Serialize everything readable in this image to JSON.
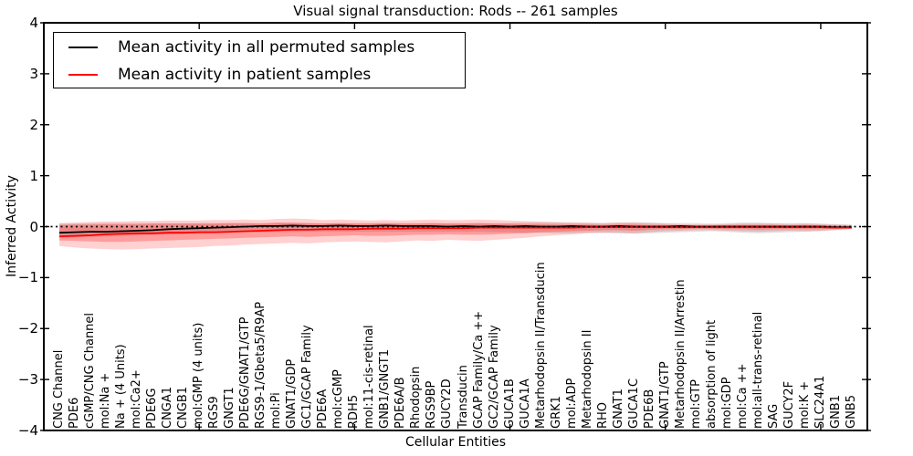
{
  "chart_data": {
    "type": "line",
    "title": "Visual signal transduction: Rods -- 261 samples",
    "xlabel": "Cellular Entities",
    "ylabel": "Inferred Activity",
    "ylim": [
      -4,
      4
    ],
    "yticks": [
      4,
      3,
      2,
      1,
      0,
      -1,
      -2,
      -3,
      -4
    ],
    "ytick_labels": [
      "4",
      "3",
      "2",
      "1",
      "0",
      "−1",
      "−2",
      "−3",
      "−4"
    ],
    "x_major_ticks": [
      10,
      20,
      30,
      40,
      50
    ],
    "grid": false,
    "legend_position": "upper left",
    "categories": [
      "CNG Channel",
      "PDE6",
      "cGMP/CNG Channel",
      "mol:Na +",
      "Na + (4 Units)",
      "mol:Ca2+",
      "PDE6G",
      "CNGA1",
      "CNGB1",
      "mol:GMP (4 units)",
      "RGS9",
      "GNGT1",
      "PDE6G/GNAT1/GTP",
      "RGS9-1/Gbeta5/R9AP",
      "mol:Pi",
      "GNAT1/GDP",
      "GC1/GCAP Family",
      "PDE6A",
      "mol:cGMP",
      "RDH5",
      "mol:11-cis-retinal",
      "GNB1/GNGT1",
      "PDE6A/B",
      "Rhodopsin",
      "RGS9BP",
      "GUCY2D",
      "Transducin",
      "GCAP Family/Ca ++",
      "GC2/GCAP Family",
      "GUCA1B",
      "GUCA1A",
      "Metarhodopsin II/Transducin",
      "GRK1",
      "mol:ADP",
      "Metarhodopsin II",
      "RHO",
      "GNAT1",
      "GUCA1C",
      "PDE6B",
      "GNAT1/GTP",
      "Metarhodopsin II/Arrestin",
      "mol:GTP",
      "absorption of light",
      "mol:GDP",
      "mol:Ca ++",
      "mol:all-trans-retinal",
      "SAG",
      "GUCY2F",
      "mol:K +",
      "SLC24A1",
      "GNB1",
      "GNB5"
    ],
    "series": [
      {
        "name": "Mean activity in all permuted samples",
        "color": "#000000",
        "values": [
          -0.12,
          -0.11,
          -0.1,
          -0.1,
          -0.09,
          -0.08,
          -0.07,
          -0.05,
          -0.04,
          -0.03,
          -0.02,
          -0.01,
          0.0,
          0.01,
          0.01,
          0.02,
          0.01,
          0.01,
          0.02,
          0.01,
          0.01,
          0.02,
          0.01,
          0.01,
          0.01,
          0.0,
          0.01,
          0.0,
          0.01,
          0.0,
          0.01,
          0.0,
          0.0,
          0.01,
          0.0,
          0.0,
          0.01,
          0.0,
          0.0,
          0.0,
          0.01,
          0.0,
          0.0,
          0.0,
          0.0,
          0.0,
          0.0,
          0.0,
          0.0,
          0.0,
          -0.01,
          -0.01
        ]
      },
      {
        "name": "Mean activity in patient samples",
        "color": "#ff0000",
        "values": [
          -0.19,
          -0.18,
          -0.17,
          -0.15,
          -0.14,
          -0.13,
          -0.13,
          -0.12,
          -0.12,
          -0.11,
          -0.11,
          -0.1,
          -0.09,
          -0.08,
          -0.07,
          -0.06,
          -0.06,
          -0.05,
          -0.05,
          -0.05,
          -0.04,
          -0.04,
          -0.04,
          -0.03,
          -0.03,
          -0.03,
          -0.03,
          -0.02,
          -0.02,
          -0.02,
          -0.02,
          -0.02,
          -0.02,
          -0.02,
          -0.01,
          -0.01,
          -0.01,
          -0.01,
          -0.01,
          -0.01,
          -0.01,
          -0.01,
          -0.01,
          -0.01,
          -0.01,
          -0.01,
          -0.01,
          -0.01,
          -0.01,
          -0.01,
          -0.02,
          -0.02
        ]
      }
    ],
    "bands": [
      {
        "name": "permuted-samples-band",
        "color": "#000000",
        "opacity": 0.12,
        "top": [
          0.06,
          0.06,
          0.07,
          0.07,
          0.07,
          0.07,
          0.07,
          0.07,
          0.07,
          0.07,
          0.07,
          0.07,
          0.07,
          0.07,
          0.07,
          0.07,
          0.07,
          0.07,
          0.07,
          0.07,
          0.07,
          0.07,
          0.07,
          0.07,
          0.07,
          0.07,
          0.07,
          0.07,
          0.07,
          0.07,
          0.08,
          0.08,
          0.08,
          0.08,
          0.07,
          0.07,
          0.08,
          0.08,
          0.08,
          0.07,
          0.07,
          0.07,
          0.06,
          0.07,
          0.08,
          0.08,
          0.07,
          0.07,
          0.07,
          0.06,
          0.05,
          0.04
        ],
        "bottom": [
          -0.22,
          -0.21,
          -0.2,
          -0.19,
          -0.18,
          -0.17,
          -0.16,
          -0.15,
          -0.14,
          -0.13,
          -0.12,
          -0.12,
          -0.11,
          -0.11,
          -0.1,
          -0.1,
          -0.1,
          -0.1,
          -0.1,
          -0.1,
          -0.1,
          -0.1,
          -0.1,
          -0.1,
          -0.1,
          -0.1,
          -0.1,
          -0.1,
          -0.11,
          -0.11,
          -0.12,
          -0.12,
          -0.13,
          -0.13,
          -0.12,
          -0.12,
          -0.13,
          -0.14,
          -0.13,
          -0.12,
          -0.11,
          -0.1,
          -0.09,
          -0.1,
          -0.12,
          -0.13,
          -0.12,
          -0.11,
          -0.1,
          -0.09,
          -0.07,
          -0.05
        ]
      },
      {
        "name": "patient-samples-band-outer",
        "color": "#ff0000",
        "opacity": 0.18,
        "top": [
          0.07,
          0.08,
          0.09,
          0.1,
          0.1,
          0.11,
          0.11,
          0.12,
          0.12,
          0.12,
          0.13,
          0.13,
          0.14,
          0.13,
          0.15,
          0.16,
          0.15,
          0.13,
          0.14,
          0.13,
          0.12,
          0.13,
          0.12,
          0.13,
          0.14,
          0.13,
          0.13,
          0.14,
          0.13,
          0.12,
          0.11,
          0.1,
          0.09,
          0.08,
          0.08,
          0.07,
          0.08,
          0.08,
          0.07,
          0.06,
          0.05,
          0.04,
          0.04,
          0.05,
          0.06,
          0.06,
          0.06,
          0.05,
          0.06,
          0.05,
          0.04,
          0.03
        ],
        "bottom": [
          -0.38,
          -0.41,
          -0.43,
          -0.44,
          -0.45,
          -0.44,
          -0.43,
          -0.42,
          -0.41,
          -0.4,
          -0.38,
          -0.37,
          -0.35,
          -0.34,
          -0.33,
          -0.32,
          -0.33,
          -0.31,
          -0.3,
          -0.29,
          -0.3,
          -0.31,
          -0.29,
          -0.27,
          -0.28,
          -0.26,
          -0.27,
          -0.28,
          -0.26,
          -0.24,
          -0.22,
          -0.19,
          -0.17,
          -0.15,
          -0.13,
          -0.12,
          -0.12,
          -0.13,
          -0.11,
          -0.09,
          -0.08,
          -0.07,
          -0.07,
          -0.08,
          -0.09,
          -0.1,
          -0.09,
          -0.08,
          -0.09,
          -0.08,
          -0.06,
          -0.04
        ]
      },
      {
        "name": "patient-samples-band-inner",
        "color": "#ff0000",
        "opacity": 0.25,
        "top": [
          0.03,
          0.04,
          0.04,
          0.05,
          0.05,
          0.05,
          0.06,
          0.06,
          0.06,
          0.06,
          0.06,
          0.07,
          0.07,
          0.06,
          0.08,
          0.08,
          0.07,
          0.06,
          0.07,
          0.06,
          0.06,
          0.07,
          0.06,
          0.06,
          0.07,
          0.06,
          0.06,
          0.07,
          0.06,
          0.06,
          0.05,
          0.05,
          0.04,
          0.04,
          0.04,
          0.03,
          0.04,
          0.04,
          0.03,
          0.03,
          0.02,
          0.02,
          0.02,
          0.03,
          0.03,
          0.03,
          0.03,
          0.02,
          0.03,
          0.02,
          0.02,
          0.01
        ],
        "bottom": [
          -0.27,
          -0.28,
          -0.29,
          -0.3,
          -0.3,
          -0.29,
          -0.28,
          -0.27,
          -0.26,
          -0.25,
          -0.24,
          -0.23,
          -0.22,
          -0.21,
          -0.2,
          -0.19,
          -0.2,
          -0.19,
          -0.18,
          -0.17,
          -0.18,
          -0.18,
          -0.17,
          -0.16,
          -0.16,
          -0.15,
          -0.16,
          -0.16,
          -0.15,
          -0.14,
          -0.13,
          -0.11,
          -0.1,
          -0.09,
          -0.08,
          -0.07,
          -0.07,
          -0.08,
          -0.06,
          -0.05,
          -0.05,
          -0.04,
          -0.04,
          -0.05,
          -0.05,
          -0.06,
          -0.05,
          -0.05,
          -0.05,
          -0.05,
          -0.04,
          -0.02
        ]
      }
    ],
    "zero_line": {
      "y": 0,
      "style": "dotted",
      "color": "#000000"
    },
    "legend": {
      "entries": [
        {
          "label": "Mean activity in all permuted samples",
          "color": "#000000"
        },
        {
          "label": "Mean activity in patient samples",
          "color": "#ff0000"
        }
      ]
    }
  }
}
